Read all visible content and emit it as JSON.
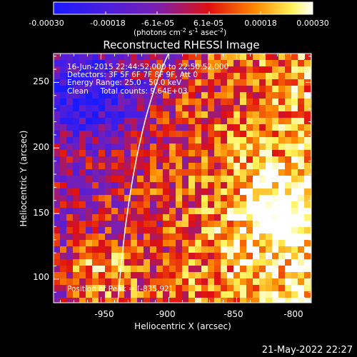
{
  "colorbar": {
    "ticks": [
      "-0.00030",
      "-0.00018",
      "-6.1e-05",
      "6.1e-05",
      "0.00018",
      "0.00030"
    ],
    "units_text": "(photons cm",
    "units_sup1": "-2",
    "units_mid": " s",
    "units_sup2": "-1",
    "units_end": " asec",
    "units_sup3": "-2",
    "units_close": ")"
  },
  "plot": {
    "title": "Reconstructed RHESSI Image",
    "xlabel": "Heliocentric X (arcsec)",
    "ylabel": "Heliocentric Y (arcsec)",
    "xticks": [
      "-950",
      "-900",
      "-850",
      "-800"
    ],
    "yticks": [
      "250",
      "200",
      "150",
      "100"
    ],
    "xlim": [
      -985,
      -795
    ],
    "ylim": [
      82,
      272
    ]
  },
  "annotations": {
    "line1": "16-Jun-2015 22:44:52.000 to 22:50:52.000",
    "line2": "Detectors: 3F 5F 6F 7F 8F 9F, Att 0",
    "line3": "Energy Range: 25.0 - 50.0 keV",
    "line4": "Clean     Total counts: 9.64E+03",
    "peak": "Position of Peak = [-835,92]"
  },
  "footer": {
    "timestamp": "21-May-2022 22:27"
  },
  "colors": {
    "cb_blue": "#1a1aff",
    "cb_purple": "#7a1fb0",
    "cb_red": "#e01010",
    "cb_orange": "#ff8a00",
    "cb_yellow": "#fff35a",
    "cb_white": "#ffffff",
    "limb": "#ffffff"
  }
}
